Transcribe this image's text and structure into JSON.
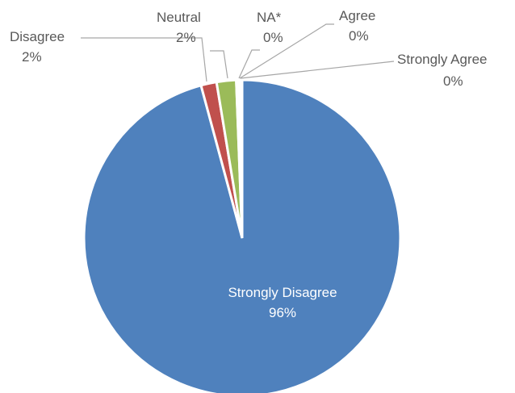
{
  "chart_data": {
    "type": "pie",
    "title": "",
    "legend": "none",
    "slices": [
      {
        "label": "Strongly Disagree",
        "value": 96,
        "display": "96%",
        "color": "#4f81bd"
      },
      {
        "label": "Disagree",
        "value": 1.6,
        "display": "2%",
        "color": "#c0504d"
      },
      {
        "label": "Neutral",
        "value": 2.0,
        "display": "2%",
        "color": "#9bbb59"
      },
      {
        "label": "NA*",
        "value": 0.2,
        "display": "0%",
        "color": "#8064a2"
      },
      {
        "label": "Agree",
        "value": 0.2,
        "display": "0%",
        "color": "#4bacc6"
      },
      {
        "label": "Strongly Agree",
        "value": 0.2,
        "display": "0%",
        "color": "#f79646"
      }
    ]
  }
}
